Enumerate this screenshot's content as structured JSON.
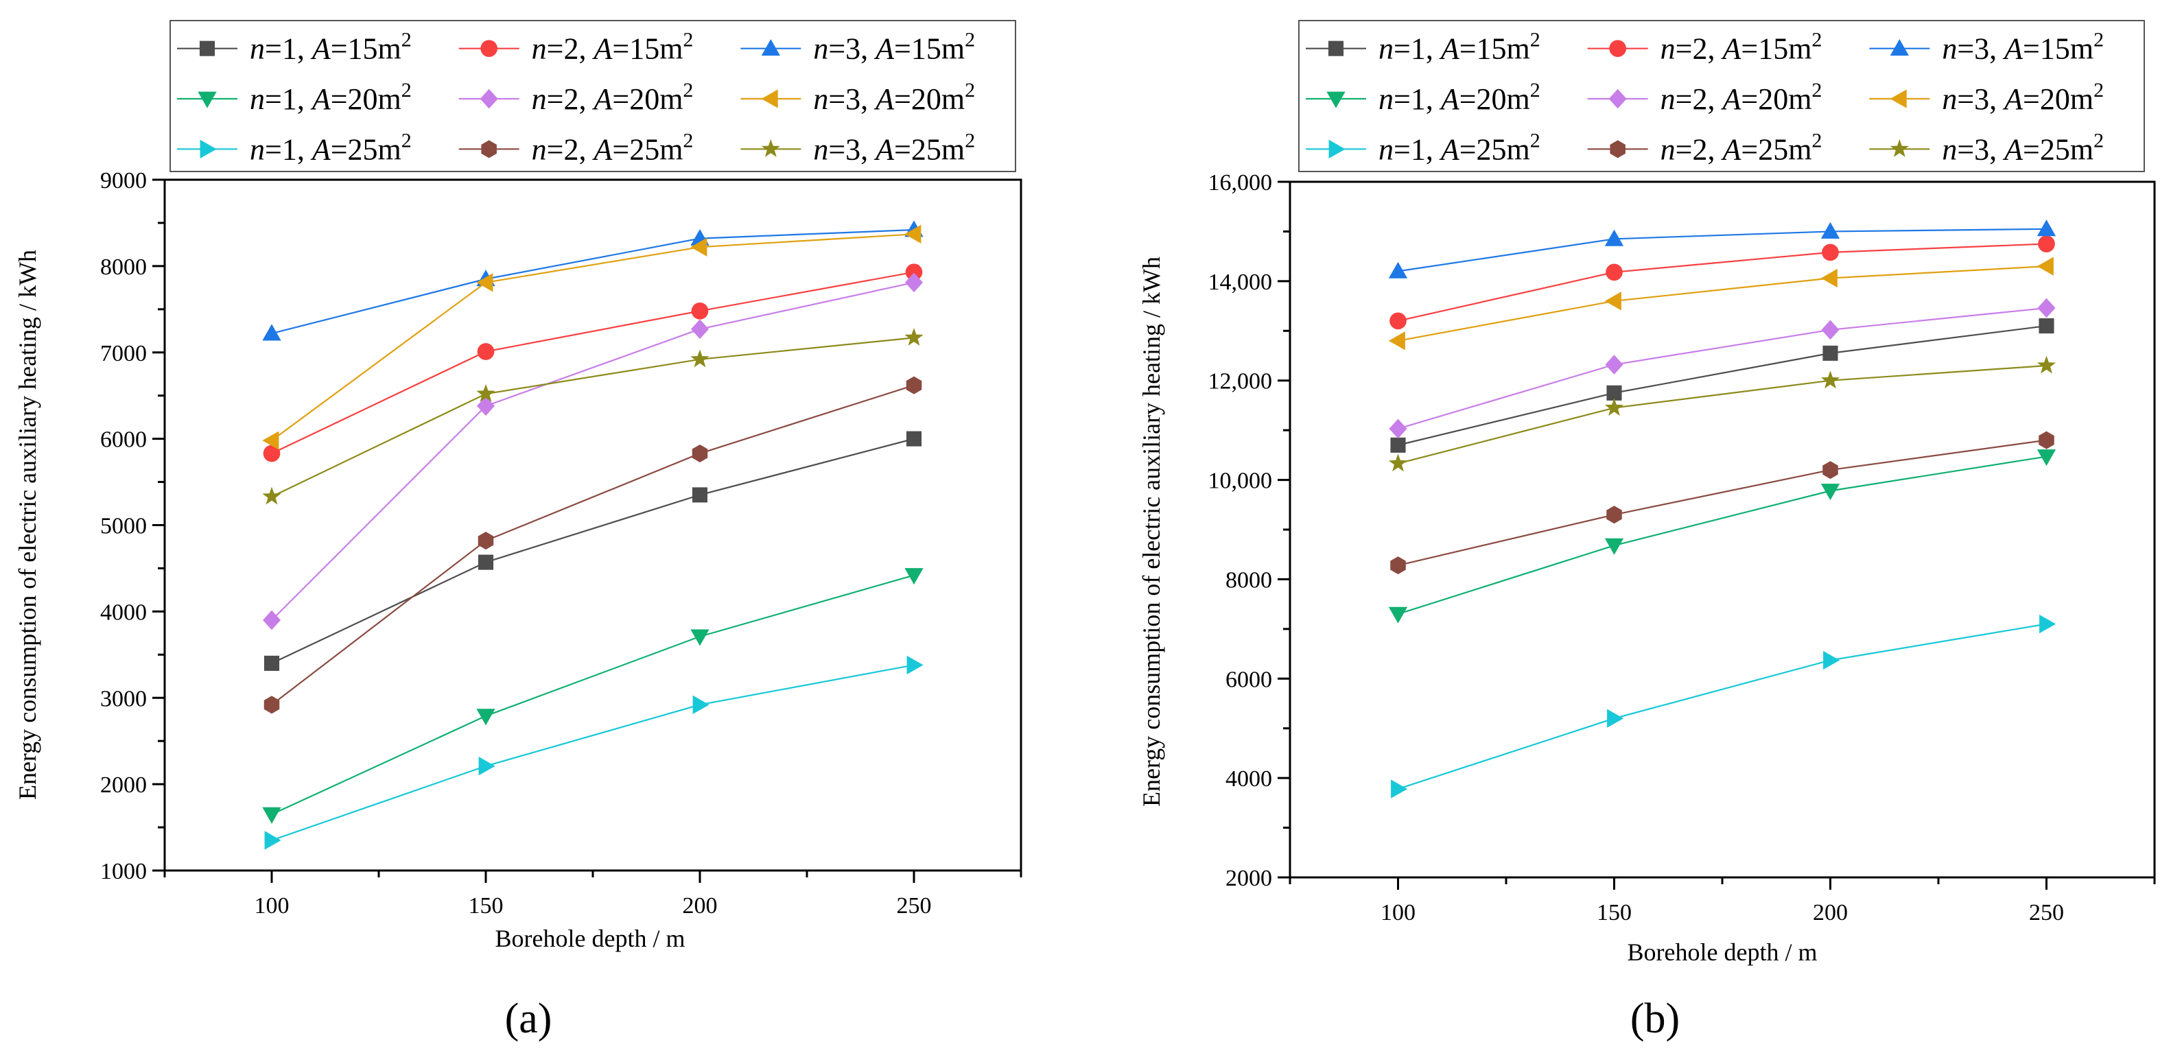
{
  "chart_data": [
    {
      "type": "line",
      "panel_label": "(a)",
      "xlabel": "Borehole depth / m",
      "ylabel": "Energy consumption of electric auxiliary heating / kWh",
      "x": [
        100,
        150,
        200,
        250
      ],
      "xticks": [
        "100",
        "150",
        "200",
        "250"
      ],
      "xlim": [
        75,
        275
      ],
      "ylim": [
        1000,
        9000
      ],
      "yticks": [
        1000,
        2000,
        3000,
        4000,
        5000,
        6000,
        7000,
        8000,
        9000
      ],
      "ytick_labels": [
        "1000",
        "2000",
        "3000",
        "4000",
        "5000",
        "6000",
        "7000",
        "8000",
        "9000"
      ],
      "legend_position": "top",
      "series": [
        {
          "n": "n",
          "n_val": "=1, ",
          "a": "A",
          "a_val": "=15m",
          "sup": "2",
          "color": "#4d4d4d",
          "marker": "square",
          "values": [
            3400,
            4570,
            5350,
            6000
          ]
        },
        {
          "n": "n",
          "n_val": "=2, ",
          "a": "A",
          "a_val": "=15m",
          "sup": "2",
          "color": "#f84040",
          "marker": "circle",
          "values": [
            5830,
            7010,
            7480,
            7930
          ]
        },
        {
          "n": "n",
          "n_val": "=3, ",
          "a": "A",
          "a_val": "=15m",
          "sup": "2",
          "color": "#1e78e6",
          "marker": "triangle-up",
          "values": [
            7220,
            7850,
            8320,
            8420
          ]
        },
        {
          "n": "n",
          "n_val": "=1, ",
          "a": "A",
          "a_val": "=20m",
          "sup": "2",
          "color": "#10b070",
          "marker": "triangle-down",
          "values": [
            1650,
            2790,
            3710,
            4420
          ]
        },
        {
          "n": "n",
          "n_val": "=2, ",
          "a": "A",
          "a_val": "=20m",
          "sup": "2",
          "color": "#c87ee8",
          "marker": "diamond",
          "values": [
            3900,
            6380,
            7270,
            7810
          ]
        },
        {
          "n": "n",
          "n_val": "=3, ",
          "a": "A",
          "a_val": "=20m",
          "sup": "2",
          "color": "#e0a010",
          "marker": "triangle-left",
          "values": [
            5980,
            7810,
            8220,
            8370
          ]
        },
        {
          "n": "n",
          "n_val": "=1, ",
          "a": "A",
          "a_val": "=25m",
          "sup": "2",
          "color": "#18c8d8",
          "marker": "triangle-right",
          "values": [
            1350,
            2210,
            2920,
            3380
          ]
        },
        {
          "n": "n",
          "n_val": "=2, ",
          "a": "A",
          "a_val": "=25m",
          "sup": "2",
          "color": "#8a4a40",
          "marker": "hexagon",
          "values": [
            2920,
            4820,
            5830,
            6620
          ]
        },
        {
          "n": "n",
          "n_val": "=3, ",
          "a": "A",
          "a_val": "=25m",
          "sup": "2",
          "color": "#8c8a1a",
          "marker": "star",
          "values": [
            5330,
            6520,
            6920,
            7170
          ]
        }
      ]
    },
    {
      "type": "line",
      "panel_label": "(b)",
      "xlabel": "Borehole depth / m",
      "ylabel": "Energy consumption of electric auxiliary heating / kWh",
      "x": [
        100,
        150,
        200,
        250
      ],
      "xticks": [
        "100",
        "150",
        "200",
        "250"
      ],
      "xlim": [
        75,
        275
      ],
      "ylim": [
        2000,
        16000
      ],
      "yticks": [
        2000,
        4000,
        6000,
        8000,
        10000,
        12000,
        14000,
        16000
      ],
      "ytick_labels": [
        "2000",
        "4000",
        "6000",
        "8000",
        "10,000",
        "12,000",
        "14,000",
        "16,000"
      ],
      "legend_position": "top",
      "series": [
        {
          "n": "n",
          "n_val": "=1, ",
          "a": "A",
          "a_val": "=15m",
          "sup": "2",
          "color": "#4d4d4d",
          "marker": "square",
          "values": [
            10700,
            11750,
            12550,
            13100
          ]
        },
        {
          "n": "n",
          "n_val": "=2, ",
          "a": "A",
          "a_val": "=15m",
          "sup": "2",
          "color": "#f84040",
          "marker": "circle",
          "values": [
            13200,
            14180,
            14580,
            14750
          ]
        },
        {
          "n": "n",
          "n_val": "=3, ",
          "a": "A",
          "a_val": "=15m",
          "sup": "2",
          "color": "#1e78e6",
          "marker": "triangle-up",
          "values": [
            14200,
            14850,
            15000,
            15050
          ]
        },
        {
          "n": "n",
          "n_val": "=1, ",
          "a": "A",
          "a_val": "=20m",
          "sup": "2",
          "color": "#10b070",
          "marker": "triangle-down",
          "values": [
            7300,
            8680,
            9780,
            10470
          ]
        },
        {
          "n": "n",
          "n_val": "=2, ",
          "a": "A",
          "a_val": "=20m",
          "sup": "2",
          "color": "#c87ee8",
          "marker": "diamond",
          "values": [
            11030,
            12320,
            13020,
            13460
          ]
        },
        {
          "n": "n",
          "n_val": "=3, ",
          "a": "A",
          "a_val": "=20m",
          "sup": "2",
          "color": "#e0a010",
          "marker": "triangle-left",
          "values": [
            12800,
            13600,
            14060,
            14300
          ]
        },
        {
          "n": "n",
          "n_val": "=1, ",
          "a": "A",
          "a_val": "=25m",
          "sup": "2",
          "color": "#18c8d8",
          "marker": "triangle-right",
          "values": [
            3780,
            5200,
            6370,
            7100
          ]
        },
        {
          "n": "n",
          "n_val": "=2, ",
          "a": "A",
          "a_val": "=25m",
          "sup": "2",
          "color": "#8a4a40",
          "marker": "hexagon",
          "values": [
            8280,
            9300,
            10200,
            10800
          ]
        },
        {
          "n": "n",
          "n_val": "=3, ",
          "a": "A",
          "a_val": "=25m",
          "sup": "2",
          "color": "#8c8a1a",
          "marker": "star",
          "values": [
            10330,
            11450,
            12000,
            12300
          ]
        }
      ]
    }
  ]
}
